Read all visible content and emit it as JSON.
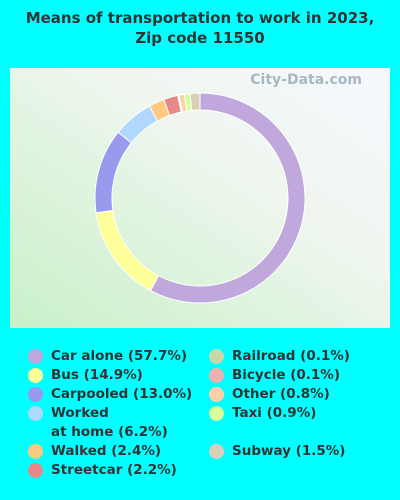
{
  "chart_data": {
    "type": "donut",
    "title": "Means of transportation to work in 2023, Zip code 11550",
    "watermark": "City-Data.com",
    "categories": [
      "Car alone (57.7%)",
      "Bus (14.9%)",
      "Carpooled (13.0%)",
      "Worked\nat home (6.2%)",
      "Walked (2.4%)",
      "Streetcar (2.2%)",
      "Railroad (0.1%)",
      "Bicycle (0.1%)",
      "Other (0.8%)",
      "Taxi (0.9%)",
      "Subway (1.5%)"
    ],
    "values": [
      57.7,
      14.9,
      13.0,
      6.2,
      2.4,
      2.2,
      0.1,
      0.1,
      0.8,
      0.9,
      1.5
    ],
    "colors": [
      "#c0a8dc",
      "#ffff99",
      "#9999ee",
      "#b0d8ff",
      "#ffc880",
      "#e88888",
      "#c8d8a8",
      "#f0b0b0",
      "#ffd0a8",
      "#d8ff99",
      "#d8d0b8"
    ]
  }
}
